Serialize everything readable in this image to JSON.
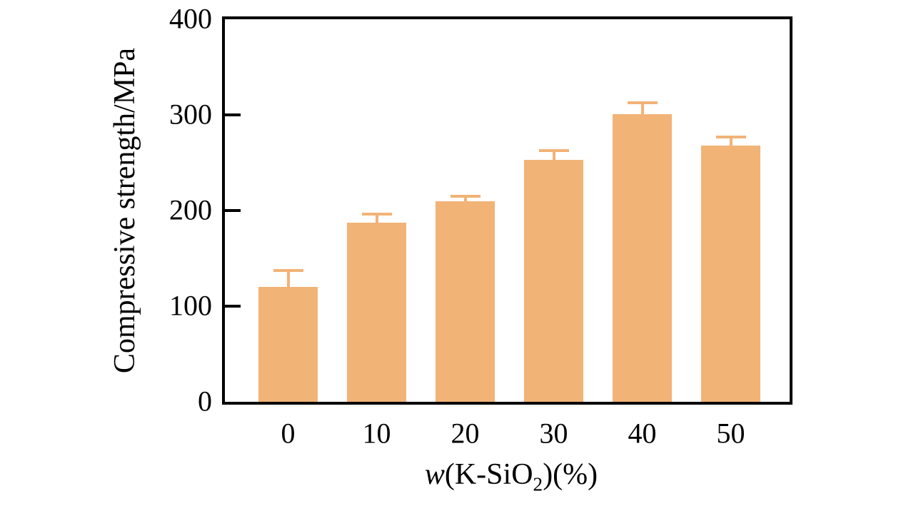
{
  "chart_data": {
    "type": "bar",
    "title": "",
    "categories": [
      "0",
      "10",
      "20",
      "30",
      "40",
      "50"
    ],
    "values": [
      120,
      187,
      210,
      253,
      301,
      268
    ],
    "errors_plus": [
      17,
      9,
      5,
      10,
      12,
      9
    ],
    "ylabel": "Compressive strength/MPa",
    "xlabel": "w(K-SiO2)(%)",
    "xlabel_parts": {
      "variable": "w",
      "mid": "(K-SiO",
      "sub": "2",
      "end": ")(%)"
    },
    "ylim": [
      0,
      400
    ],
    "yticks": [
      0,
      100,
      200,
      300,
      400
    ],
    "bar_color": "#F2B377",
    "axis_color": "#000000",
    "background_color": "#FFFFFF",
    "grid": false,
    "legend": false
  }
}
